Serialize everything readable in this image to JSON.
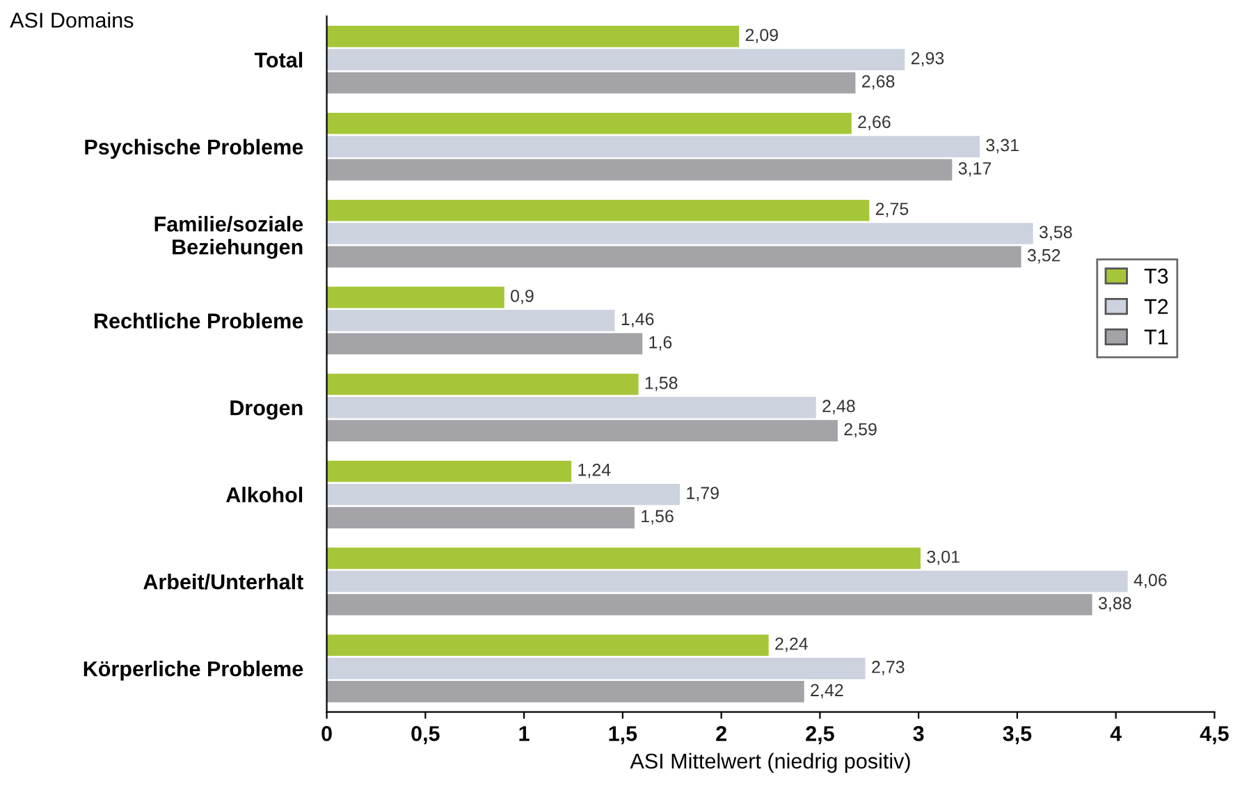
{
  "chart_data": {
    "type": "bar",
    "orientation": "horizontal",
    "title": "ASI Domains",
    "xlabel": "ASI Mittelwert (niedrig positiv)",
    "categories": [
      "Total",
      "Psychische Probleme",
      "Familie/soziale\nBeziehungen",
      "Rechtliche Probleme",
      "Drogen",
      "Alkohol",
      "Arbeit/Unterhalt",
      "Körperliche Probleme"
    ],
    "series": [
      {
        "name": "T3",
        "color": "#a6c63a",
        "values": [
          2.09,
          2.66,
          2.75,
          0.9,
          1.58,
          1.24,
          3.01,
          2.24
        ],
        "value_labels": [
          "2,09",
          "2,66",
          "2,75",
          "0,9",
          "1,58",
          "1,24",
          "3,01",
          "2,24"
        ]
      },
      {
        "name": "T2",
        "color": "#ccd3df",
        "values": [
          2.93,
          3.31,
          3.58,
          1.46,
          2.48,
          1.79,
          4.06,
          2.73
        ],
        "value_labels": [
          "2,93",
          "3,31",
          "3,58",
          "1,46",
          "2,48",
          "1,79",
          "4,06",
          "2,73"
        ]
      },
      {
        "name": "T1",
        "color": "#a3a3a8",
        "values": [
          2.68,
          3.17,
          3.52,
          1.6,
          2.59,
          1.56,
          3.88,
          2.42
        ],
        "value_labels": [
          "2,68",
          "3,17",
          "3,52",
          "1,6",
          "2,59",
          "1,56",
          "3,88",
          "2,42"
        ]
      }
    ],
    "xlim": [
      0,
      4.5
    ],
    "xticks": [
      0,
      {
        "value": 0.5,
        "label": "0,5"
      },
      1,
      {
        "value": 1.5,
        "label": "1,5"
      },
      2,
      {
        "value": 2.5,
        "label": "2,5"
      },
      3,
      {
        "value": 3.5,
        "label": "3,5"
      },
      4,
      {
        "value": 4.5,
        "label": "4,5"
      }
    ],
    "grid": false,
    "legend": "right"
  }
}
